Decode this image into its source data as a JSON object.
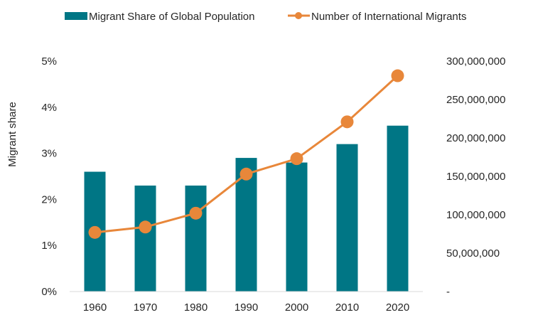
{
  "chart_data": {
    "type": "bar+line",
    "categories": [
      "1960",
      "1970",
      "1980",
      "1990",
      "2000",
      "2010",
      "2020"
    ],
    "series": [
      {
        "name": "Migrant Share of Global Population",
        "type": "bar",
        "axis": "left",
        "values": [
          2.6,
          2.3,
          2.3,
          2.9,
          2.8,
          3.2,
          3.6
        ],
        "color": "#007685"
      },
      {
        "name": "Number of International Migrants",
        "type": "line",
        "axis": "right",
        "values": [
          77000000,
          84000000,
          102000000,
          153000000,
          173000000,
          221000000,
          281000000
        ],
        "color": "#E8873A"
      }
    ],
    "ylabel": "Migrant share",
    "ylim": [
      0,
      5
    ],
    "y_ticks": [
      "0%",
      "1%",
      "2%",
      "3%",
      "4%",
      "5%"
    ],
    "y2lim": [
      0,
      300000000
    ],
    "y2_ticks": [
      "-",
      "50,000,000",
      "100,000,000",
      "150,000,000",
      "200,000,000",
      "250,000,000",
      "300,000,000"
    ],
    "grid": false,
    "legend_position": "top"
  }
}
